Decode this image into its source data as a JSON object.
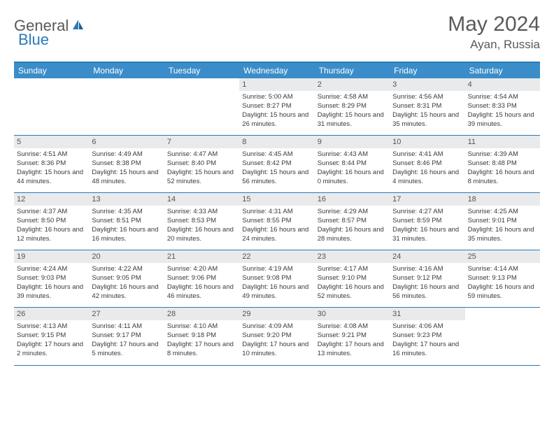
{
  "brand": {
    "part1": "General",
    "part2": "Blue"
  },
  "title": "May 2024",
  "location": "Ayan, Russia",
  "header_bg": "#3a8dc9",
  "border_color": "#2a7ab9",
  "daynum_bg": "#e9eaeb",
  "weekday_color": "#ffffff",
  "text_color": "#3a3a3a",
  "weekdays": [
    "Sunday",
    "Monday",
    "Tuesday",
    "Wednesday",
    "Thursday",
    "Friday",
    "Saturday"
  ],
  "weeks": [
    [
      {
        "n": "",
        "sr": "",
        "ss": "",
        "dl": ""
      },
      {
        "n": "",
        "sr": "",
        "ss": "",
        "dl": ""
      },
      {
        "n": "",
        "sr": "",
        "ss": "",
        "dl": ""
      },
      {
        "n": "1",
        "sr": "5:00 AM",
        "ss": "8:27 PM",
        "dl": "15 hours and 26 minutes."
      },
      {
        "n": "2",
        "sr": "4:58 AM",
        "ss": "8:29 PM",
        "dl": "15 hours and 31 minutes."
      },
      {
        "n": "3",
        "sr": "4:56 AM",
        "ss": "8:31 PM",
        "dl": "15 hours and 35 minutes."
      },
      {
        "n": "4",
        "sr": "4:54 AM",
        "ss": "8:33 PM",
        "dl": "15 hours and 39 minutes."
      }
    ],
    [
      {
        "n": "5",
        "sr": "4:51 AM",
        "ss": "8:36 PM",
        "dl": "15 hours and 44 minutes."
      },
      {
        "n": "6",
        "sr": "4:49 AM",
        "ss": "8:38 PM",
        "dl": "15 hours and 48 minutes."
      },
      {
        "n": "7",
        "sr": "4:47 AM",
        "ss": "8:40 PM",
        "dl": "15 hours and 52 minutes."
      },
      {
        "n": "8",
        "sr": "4:45 AM",
        "ss": "8:42 PM",
        "dl": "15 hours and 56 minutes."
      },
      {
        "n": "9",
        "sr": "4:43 AM",
        "ss": "8:44 PM",
        "dl": "16 hours and 0 minutes."
      },
      {
        "n": "10",
        "sr": "4:41 AM",
        "ss": "8:46 PM",
        "dl": "16 hours and 4 minutes."
      },
      {
        "n": "11",
        "sr": "4:39 AM",
        "ss": "8:48 PM",
        "dl": "16 hours and 8 minutes."
      }
    ],
    [
      {
        "n": "12",
        "sr": "4:37 AM",
        "ss": "8:50 PM",
        "dl": "16 hours and 12 minutes."
      },
      {
        "n": "13",
        "sr": "4:35 AM",
        "ss": "8:51 PM",
        "dl": "16 hours and 16 minutes."
      },
      {
        "n": "14",
        "sr": "4:33 AM",
        "ss": "8:53 PM",
        "dl": "16 hours and 20 minutes."
      },
      {
        "n": "15",
        "sr": "4:31 AM",
        "ss": "8:55 PM",
        "dl": "16 hours and 24 minutes."
      },
      {
        "n": "16",
        "sr": "4:29 AM",
        "ss": "8:57 PM",
        "dl": "16 hours and 28 minutes."
      },
      {
        "n": "17",
        "sr": "4:27 AM",
        "ss": "8:59 PM",
        "dl": "16 hours and 31 minutes."
      },
      {
        "n": "18",
        "sr": "4:25 AM",
        "ss": "9:01 PM",
        "dl": "16 hours and 35 minutes."
      }
    ],
    [
      {
        "n": "19",
        "sr": "4:24 AM",
        "ss": "9:03 PM",
        "dl": "16 hours and 39 minutes."
      },
      {
        "n": "20",
        "sr": "4:22 AM",
        "ss": "9:05 PM",
        "dl": "16 hours and 42 minutes."
      },
      {
        "n": "21",
        "sr": "4:20 AM",
        "ss": "9:06 PM",
        "dl": "16 hours and 46 minutes."
      },
      {
        "n": "22",
        "sr": "4:19 AM",
        "ss": "9:08 PM",
        "dl": "16 hours and 49 minutes."
      },
      {
        "n": "23",
        "sr": "4:17 AM",
        "ss": "9:10 PM",
        "dl": "16 hours and 52 minutes."
      },
      {
        "n": "24",
        "sr": "4:16 AM",
        "ss": "9:12 PM",
        "dl": "16 hours and 56 minutes."
      },
      {
        "n": "25",
        "sr": "4:14 AM",
        "ss": "9:13 PM",
        "dl": "16 hours and 59 minutes."
      }
    ],
    [
      {
        "n": "26",
        "sr": "4:13 AM",
        "ss": "9:15 PM",
        "dl": "17 hours and 2 minutes."
      },
      {
        "n": "27",
        "sr": "4:11 AM",
        "ss": "9:17 PM",
        "dl": "17 hours and 5 minutes."
      },
      {
        "n": "28",
        "sr": "4:10 AM",
        "ss": "9:18 PM",
        "dl": "17 hours and 8 minutes."
      },
      {
        "n": "29",
        "sr": "4:09 AM",
        "ss": "9:20 PM",
        "dl": "17 hours and 10 minutes."
      },
      {
        "n": "30",
        "sr": "4:08 AM",
        "ss": "9:21 PM",
        "dl": "17 hours and 13 minutes."
      },
      {
        "n": "31",
        "sr": "4:06 AM",
        "ss": "9:23 PM",
        "dl": "17 hours and 16 minutes."
      },
      {
        "n": "",
        "sr": "",
        "ss": "",
        "dl": ""
      }
    ]
  ]
}
